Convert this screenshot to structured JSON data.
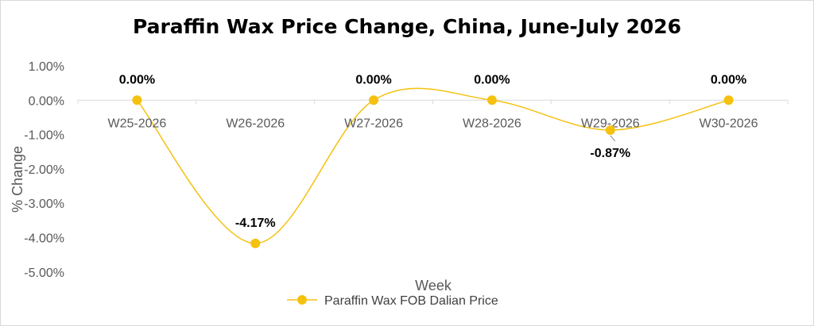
{
  "chart_data": {
    "type": "line",
    "title": "Paraffin Wax Price Change, China, June-July 2026",
    "xlabel": "Week",
    "ylabel": "% Change",
    "categories": [
      "W25-2026",
      "W26-2026",
      "W27-2026",
      "W28-2026",
      "W29-2026",
      "W30-2026"
    ],
    "series": [
      {
        "name": "Paraffin Wax FOB Dalian Price",
        "values": [
          0.0,
          -4.17,
          0.0,
          0.0,
          -0.87,
          0.0
        ],
        "data_labels": [
          "0.00%",
          "-4.17%",
          "0.00%",
          "0.00%",
          "-0.87%",
          "0.00%"
        ],
        "color": "#F5C10E"
      }
    ],
    "yticks": [
      "1.00%",
      "0.00%",
      "-1.00%",
      "-2.00%",
      "-3.00%",
      "-4.00%",
      "-5.00%"
    ],
    "ylim": [
      -5,
      1
    ],
    "smooth": true,
    "grid": false,
    "legend_position": "bottom"
  }
}
